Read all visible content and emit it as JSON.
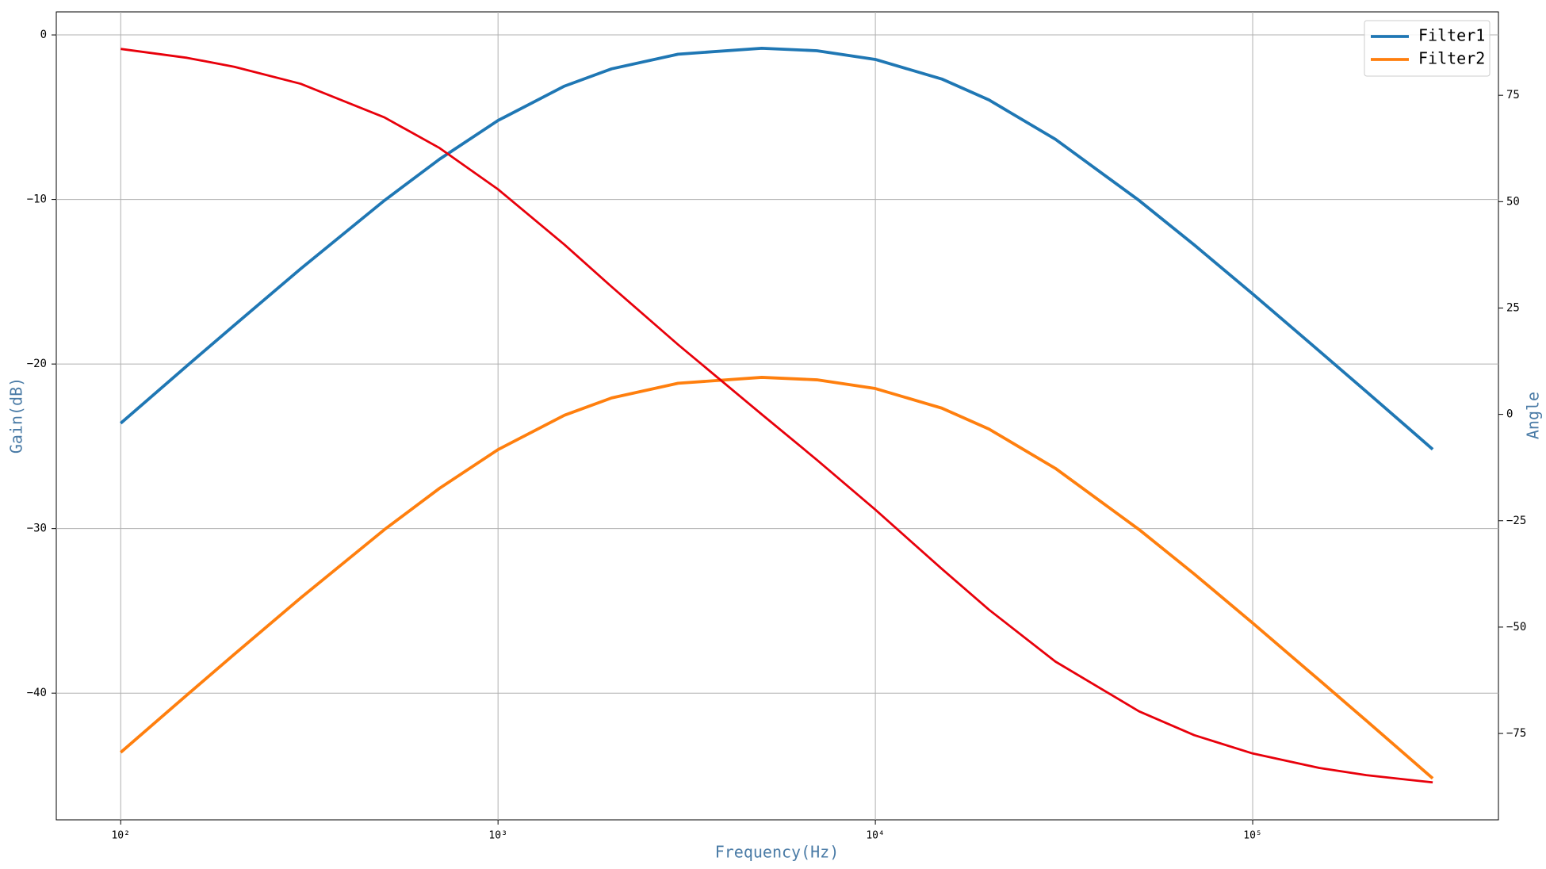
{
  "chart_data": {
    "type": "line",
    "x_label": "Frequency(Hz)",
    "y_label": "Gain(dB)",
    "y2_label": "Angle",
    "xscale": "log",
    "grid": true,
    "legend": "upper right",
    "xlim": [
      67.5,
      448000
    ],
    "xticks": [
      {
        "value": 100,
        "label": "10²"
      },
      {
        "value": 1000,
        "label": "10³"
      },
      {
        "value": 10000,
        "label": "10⁴"
      },
      {
        "value": 100000,
        "label": "10⁵"
      }
    ],
    "ylim": [
      -47.7,
      1.4
    ],
    "yticks": [
      0,
      {
        "value": -10,
        "label": "−10"
      },
      {
        "value": -20,
        "label": "−20"
      },
      {
        "value": -30,
        "label": "−30"
      },
      {
        "value": -40,
        "label": "−40"
      }
    ],
    "y2lim": [
      -95.3,
      94.6
    ],
    "y2ticks": [
      75,
      50,
      25,
      0,
      {
        "value": -25,
        "label": "−25"
      },
      {
        "value": -50,
        "label": "−50"
      },
      {
        "value": -75,
        "label": "−75"
      }
    ],
    "x": [
      100,
      150,
      200,
      300,
      500,
      700,
      1000,
      1500,
      2000,
      3000,
      5000,
      7000,
      10000,
      15000,
      20000,
      30000,
      50000,
      70000,
      100000,
      150000,
      200000,
      300000
    ],
    "series": [
      {
        "name": "Filter1",
        "color": "#1f77b4",
        "values": [
          -23.6,
          -20.1,
          -17.64,
          -14.21,
          -10.06,
          -7.55,
          -5.2,
          -3.11,
          -2.06,
          -1.17,
          -0.81,
          -0.96,
          -1.49,
          -2.68,
          -3.95,
          -6.34,
          -10.06,
          -12.76,
          -15.74,
          -19.2,
          -21.67,
          -25.18
        ]
      },
      {
        "name": "Filter2",
        "color": "#ff7f0e",
        "values": [
          -43.6,
          -40.1,
          -37.64,
          -34.21,
          -30.06,
          -27.55,
          -25.2,
          -23.11,
          -22.06,
          -21.17,
          -20.81,
          -20.96,
          -21.49,
          -22.68,
          -23.95,
          -26.34,
          -30.06,
          -32.76,
          -35.74,
          -39.2,
          -41.67,
          -45.18
        ]
      },
      {
        "color": "#e8000b",
        "axis": "y2",
        "values": [
          85.9,
          83.8,
          81.7,
          77.7,
          69.8,
          62.6,
          52.9,
          39.9,
          30.0,
          16.4,
          0,
          -10.7,
          -22.4,
          -36.3,
          -45.9,
          -58.1,
          -69.8,
          -75.4,
          -79.7,
          -83.1,
          -84.8,
          -86.5
        ]
      }
    ]
  }
}
